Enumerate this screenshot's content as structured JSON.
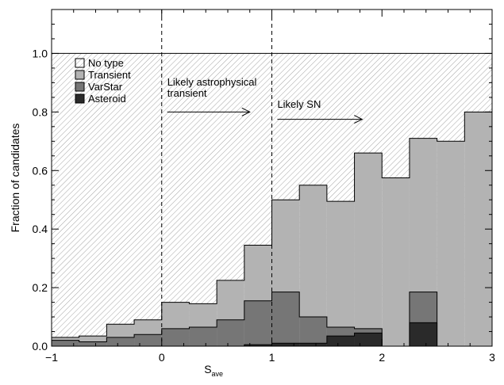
{
  "chart_data": {
    "type": "area",
    "xlabel": "S",
    "xlabel_sub": "ave",
    "ylabel": "Fraction of candidates",
    "xlim": [
      -1,
      3
    ],
    "ylim": [
      0,
      1.15
    ],
    "xticks": [
      -1,
      0,
      1,
      2,
      3
    ],
    "xtick_labels": [
      "−1",
      "0",
      "1",
      "2",
      "3"
    ],
    "yticks": [
      0.0,
      0.2,
      0.4,
      0.6,
      0.8,
      1.0
    ],
    "ytick_labels": [
      "0.0",
      "0.2",
      "0.4",
      "0.6",
      "0.8",
      "1.0"
    ],
    "bin_edges": [
      -1.0,
      -0.75,
      -0.5,
      -0.25,
      0.0,
      0.25,
      0.5,
      0.75,
      1.0,
      1.25,
      1.5,
      1.75,
      2.0,
      2.25,
      2.5,
      2.75,
      3.0
    ],
    "series": [
      {
        "name": "No type",
        "color": "#ffffff",
        "pattern": "hatch",
        "values": [
          1.0,
          1.0,
          1.0,
          1.0,
          1.0,
          1.0,
          1.0,
          1.0,
          1.0,
          1.0,
          1.0,
          1.0,
          1.0,
          1.0,
          1.0,
          1.0
        ]
      },
      {
        "name": "Transient",
        "color": "#b3b3b3",
        "values": [
          0.03,
          0.035,
          0.075,
          0.09,
          0.15,
          0.145,
          0.225,
          0.345,
          0.5,
          0.55,
          0.495,
          0.66,
          0.575,
          0.71,
          0.7,
          0.8
        ]
      },
      {
        "name": "VarStar",
        "color": "#767676",
        "values": [
          0.02,
          0.015,
          0.03,
          0.04,
          0.06,
          0.065,
          0.09,
          0.155,
          0.185,
          0.1,
          0.065,
          0.06,
          0.0,
          0.185,
          0.0,
          0.0
        ]
      },
      {
        "name": "Asteroid",
        "color": "#2a2a2a",
        "values": [
          0.0,
          0.0,
          0.0,
          0.0,
          0.0,
          0.0,
          0.0,
          0.005,
          0.01,
          0.01,
          0.035,
          0.045,
          0.0,
          0.08,
          0.0,
          0.0
        ]
      }
    ],
    "vlines": [
      0,
      1
    ],
    "vline_style": "dashed",
    "annotations": [
      {
        "text_lines": [
          "Likely astrophysical",
          "transient"
        ],
        "arrow_from": [
          0.05,
          0.8
        ],
        "arrow_to": [
          0.8,
          0.8
        ]
      },
      {
        "text_lines": [
          "Likely SN"
        ],
        "arrow_from": [
          1.05,
          0.775
        ],
        "arrow_to": [
          1.82,
          0.775
        ]
      }
    ],
    "legend_position": "top-left"
  }
}
